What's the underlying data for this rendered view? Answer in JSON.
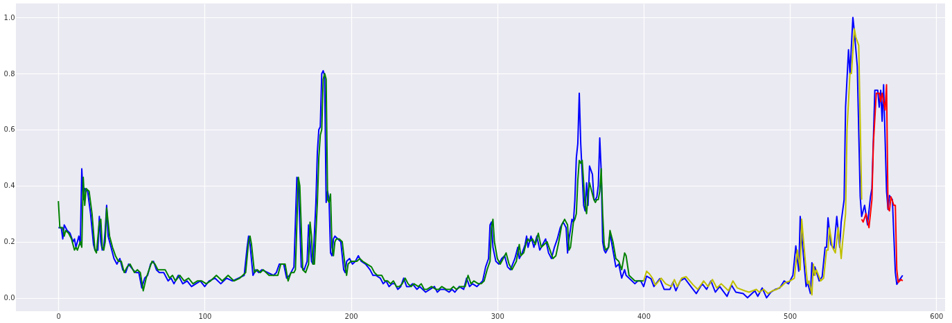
{
  "chart_data": {
    "type": "line",
    "xlim": [
      -29,
      606
    ],
    "ylim": [
      -0.048,
      1.05
    ],
    "xticks": [
      0,
      100,
      200,
      300,
      400,
      500,
      600
    ],
    "yticks": [
      {
        "value": 0,
        "label": "0.0"
      },
      {
        "value": 0.2,
        "label": "0.2"
      },
      {
        "value": 0.4,
        "label": "0.4"
      },
      {
        "value": 0.6,
        "label": "0.6"
      },
      {
        "value": 0.8,
        "label": "0.8"
      },
      {
        "value": 1.0,
        "label": "1.0"
      }
    ],
    "grid": true,
    "line_style": "solid",
    "marker": "none",
    "series": [
      {
        "color": "#0000ff",
        "x": [
          0,
          2,
          3,
          4,
          6,
          8,
          10,
          11,
          12,
          14,
          15,
          16,
          17,
          18,
          20,
          22,
          24,
          25,
          27,
          28,
          29,
          30,
          31,
          32,
          33,
          34,
          36,
          38,
          40,
          42,
          44,
          46,
          48,
          51,
          53,
          55,
          57,
          59,
          61,
          63,
          65,
          67,
          69,
          72,
          75,
          77,
          79,
          82,
          85,
          88,
          91,
          94,
          97,
          100,
          103,
          107,
          111,
          115,
          119,
          123,
          127,
          129,
          130,
          131,
          133,
          135,
          137,
          139,
          143,
          147,
          149,
          151,
          154,
          156,
          158,
          160,
          161,
          163,
          164,
          166,
          168,
          170,
          171,
          172,
          173,
          174,
          176,
          177,
          178,
          179,
          180,
          181,
          182,
          183,
          184,
          185,
          186,
          187,
          188,
          189,
          191,
          193,
          195,
          196,
          197,
          199,
          201,
          203,
          205,
          207,
          210,
          213,
          215,
          217,
          220,
          222,
          224,
          226,
          228,
          230,
          232,
          234,
          236,
          238,
          240,
          242,
          245,
          247,
          249,
          251,
          254,
          257,
          259,
          261,
          264,
          267,
          269,
          271,
          274,
          277,
          279,
          281,
          283,
          286,
          288,
          290,
          292,
          294,
          295,
          296,
          297,
          299,
          301,
          303,
          305,
          307,
          309,
          312,
          314,
          315,
          317,
          319,
          320,
          321,
          323,
          325,
          327,
          329,
          331,
          333,
          335,
          337,
          339,
          341,
          343,
          345,
          347,
          348,
          349,
          351,
          352,
          353,
          354,
          355,
          356,
          357,
          359,
          360,
          361,
          362,
          363,
          365,
          366,
          367,
          368,
          369,
          370,
          371,
          372,
          373,
          374,
          376,
          377,
          379,
          381,
          383,
          385,
          387,
          388,
          390,
          392,
          394,
          396,
          398,
          400,
          402,
          405,
          407,
          411,
          414,
          418,
          420,
          422,
          425,
          428,
          433,
          436,
          440,
          443,
          446,
          449,
          452,
          457,
          460,
          463,
          468,
          471,
          476,
          478,
          481,
          484,
          487,
          490,
          493,
          496,
          499,
          502,
          504,
          506,
          507,
          510,
          511,
          512,
          514,
          515,
          516,
          517,
          520,
          522,
          524,
          525,
          526,
          528,
          530,
          532,
          534,
          535,
          537,
          538,
          540,
          541,
          543,
          544,
          546,
          548,
          549,
          551,
          553,
          555,
          556,
          558,
          560,
          561,
          562,
          563,
          564,
          566,
          567,
          568,
          570,
          572,
          573,
          575,
          577
        ],
        "values": [
          0.25,
          0.25,
          0.21,
          0.26,
          0.24,
          0.23,
          0.2,
          0.21,
          0.18,
          0.22,
          0.19,
          0.46,
          0.35,
          0.39,
          0.38,
          0.3,
          0.19,
          0.17,
          0.17,
          0.29,
          0.2,
          0.17,
          0.18,
          0.24,
          0.33,
          0.22,
          0.18,
          0.14,
          0.12,
          0.14,
          0.1,
          0.09,
          0.12,
          0.1,
          0.09,
          0.09,
          0.035,
          0.07,
          0.08,
          0.12,
          0.13,
          0.1,
          0.09,
          0.09,
          0.06,
          0.07,
          0.05,
          0.08,
          0.05,
          0.06,
          0.04,
          0.05,
          0.06,
          0.04,
          0.06,
          0.07,
          0.05,
          0.07,
          0.06,
          0.07,
          0.08,
          0.18,
          0.22,
          0.19,
          0.08,
          0.1,
          0.09,
          0.1,
          0.09,
          0.08,
          0.09,
          0.12,
          0.12,
          0.07,
          0.08,
          0.1,
          0.11,
          0.43,
          0.42,
          0.11,
          0.1,
          0.13,
          0.26,
          0.2,
          0.13,
          0.12,
          0.34,
          0.52,
          0.6,
          0.61,
          0.8,
          0.81,
          0.79,
          0.34,
          0.38,
          0.35,
          0.16,
          0.15,
          0.21,
          0.22,
          0.21,
          0.2,
          0.1,
          0.09,
          0.13,
          0.14,
          0.12,
          0.13,
          0.15,
          0.13,
          0.12,
          0.1,
          0.08,
          0.08,
          0.07,
          0.05,
          0.06,
          0.04,
          0.05,
          0.05,
          0.03,
          0.04,
          0.07,
          0.04,
          0.04,
          0.05,
          0.03,
          0.04,
          0.03,
          0.02,
          0.03,
          0.04,
          0.02,
          0.03,
          0.03,
          0.02,
          0.03,
          0.02,
          0.04,
          0.03,
          0.07,
          0.04,
          0.05,
          0.04,
          0.05,
          0.06,
          0.11,
          0.14,
          0.26,
          0.27,
          0.18,
          0.13,
          0.12,
          0.14,
          0.15,
          0.11,
          0.1,
          0.14,
          0.18,
          0.14,
          0.16,
          0.19,
          0.22,
          0.18,
          0.22,
          0.18,
          0.22,
          0.17,
          0.19,
          0.21,
          0.16,
          0.14,
          0.18,
          0.21,
          0.25,
          0.27,
          0.25,
          0.16,
          0.21,
          0.28,
          0.27,
          0.35,
          0.5,
          0.55,
          0.73,
          0.55,
          0.33,
          0.31,
          0.41,
          0.33,
          0.47,
          0.44,
          0.35,
          0.35,
          0.36,
          0.4,
          0.57,
          0.45,
          0.2,
          0.17,
          0.16,
          0.18,
          0.23,
          0.17,
          0.11,
          0.12,
          0.07,
          0.1,
          0.08,
          0.07,
          0.06,
          0.05,
          0.06,
          0.06,
          0.04,
          0.077,
          0.068,
          0.04,
          0.068,
          0.03,
          0.03,
          0.055,
          0.025,
          0.06,
          0.07,
          0.035,
          0.015,
          0.05,
          0.03,
          0.06,
          0.02,
          0.04,
          0.005,
          0.045,
          0.02,
          0.015,
          0.0,
          0.025,
          0.005,
          0.035,
          0.0,
          0.02,
          0.03,
          0.035,
          0.06,
          0.05,
          0.08,
          0.185,
          0.095,
          0.29,
          0.1,
          0.04,
          0.055,
          0.015,
          0.125,
          0.08,
          0.11,
          0.06,
          0.075,
          0.18,
          0.18,
          0.285,
          0.19,
          0.175,
          0.29,
          0.18,
          0.27,
          0.35,
          0.68,
          0.885,
          0.8,
          1.0,
          0.95,
          0.825,
          0.36,
          0.29,
          0.33,
          0.26,
          0.36,
          0.39,
          0.74,
          0.74,
          0.68,
          0.74,
          0.63,
          0.76,
          0.38,
          0.315,
          0.365,
          0.35,
          0.09,
          0.048,
          0.065,
          0.08
        ]
      },
      {
        "color": "#008000",
        "x": [
          0,
          1,
          3,
          4,
          5,
          7,
          9,
          11,
          12,
          13,
          15,
          16,
          17,
          18,
          19,
          21,
          23,
          25,
          26,
          28,
          29,
          30,
          31,
          32,
          33,
          35,
          37,
          39,
          41,
          43,
          45,
          47,
          49,
          52,
          54,
          56,
          58,
          60,
          62,
          64,
          66,
          68,
          70,
          73,
          76,
          78,
          80,
          83,
          86,
          89,
          92,
          95,
          98,
          101,
          104,
          108,
          112,
          116,
          120,
          124,
          128,
          130,
          131,
          132,
          134,
          136,
          138,
          140,
          144,
          148,
          150,
          152,
          155,
          157,
          159,
          161,
          162,
          164,
          165,
          167,
          169,
          171,
          172,
          173,
          174,
          175,
          177,
          178,
          179,
          180,
          181,
          182,
          183,
          184,
          185,
          186,
          187,
          188,
          189,
          190,
          192,
          194,
          196,
          197,
          198,
          200,
          202,
          204,
          206,
          208,
          211,
          214,
          216,
          218,
          221,
          223,
          225,
          227,
          229,
          231,
          233,
          235,
          237,
          239,
          241,
          243,
          246,
          248,
          250,
          252,
          255,
          258,
          260,
          262,
          265,
          268,
          270,
          272,
          275,
          278,
          280,
          282,
          284,
          287,
          289,
          291,
          293,
          295,
          296,
          297,
          298,
          300,
          302,
          304,
          306,
          308,
          310,
          313,
          315,
          316,
          318,
          320,
          321,
          322,
          324,
          326,
          328,
          330,
          332,
          334,
          336,
          338,
          340,
          342,
          344,
          346,
          348,
          349,
          350,
          352,
          353,
          354,
          355,
          356,
          357,
          358,
          360,
          361,
          362,
          363,
          364,
          366,
          367,
          368,
          369,
          370,
          371,
          372,
          373,
          374,
          376,
          377,
          379,
          381,
          383,
          385,
          387,
          388,
          390,
          392,
          394,
          396,
          398,
          400
        ],
        "values": [
          0.345,
          0.25,
          0.25,
          0.22,
          0.24,
          0.23,
          0.21,
          0.17,
          0.18,
          0.17,
          0.2,
          0.18,
          0.43,
          0.33,
          0.39,
          0.38,
          0.3,
          0.17,
          0.16,
          0.27,
          0.28,
          0.18,
          0.17,
          0.2,
          0.32,
          0.22,
          0.18,
          0.15,
          0.13,
          0.13,
          0.09,
          0.11,
          0.12,
          0.09,
          0.1,
          0.09,
          0.025,
          0.07,
          0.1,
          0.13,
          0.12,
          0.1,
          0.1,
          0.1,
          0.07,
          0.08,
          0.06,
          0.08,
          0.06,
          0.07,
          0.05,
          0.06,
          0.06,
          0.05,
          0.06,
          0.08,
          0.06,
          0.08,
          0.06,
          0.07,
          0.09,
          0.2,
          0.22,
          0.19,
          0.09,
          0.1,
          0.09,
          0.1,
          0.08,
          0.08,
          0.08,
          0.12,
          0.12,
          0.06,
          0.09,
          0.09,
          0.1,
          0.43,
          0.4,
          0.1,
          0.09,
          0.12,
          0.27,
          0.22,
          0.12,
          0.12,
          0.34,
          0.5,
          0.58,
          0.6,
          0.78,
          0.8,
          0.78,
          0.35,
          0.34,
          0.37,
          0.18,
          0.15,
          0.2,
          0.21,
          0.21,
          0.2,
          0.11,
          0.08,
          0.12,
          0.13,
          0.13,
          0.13,
          0.14,
          0.13,
          0.12,
          0.11,
          0.09,
          0.08,
          0.08,
          0.06,
          0.06,
          0.05,
          0.06,
          0.04,
          0.04,
          0.05,
          0.07,
          0.05,
          0.04,
          0.05,
          0.04,
          0.05,
          0.03,
          0.03,
          0.04,
          0.03,
          0.03,
          0.04,
          0.03,
          0.03,
          0.04,
          0.03,
          0.04,
          0.04,
          0.08,
          0.05,
          0.06,
          0.05,
          0.05,
          0.06,
          0.1,
          0.13,
          0.25,
          0.28,
          0.2,
          0.14,
          0.12,
          0.14,
          0.16,
          0.12,
          0.1,
          0.13,
          0.19,
          0.15,
          0.16,
          0.2,
          0.21,
          0.2,
          0.21,
          0.19,
          0.23,
          0.18,
          0.19,
          0.2,
          0.17,
          0.14,
          0.15,
          0.2,
          0.26,
          0.28,
          0.26,
          0.17,
          0.18,
          0.27,
          0.28,
          0.3,
          0.42,
          0.49,
          0.48,
          0.49,
          0.33,
          0.3,
          0.37,
          0.41,
          0.39,
          0.35,
          0.34,
          0.35,
          0.35,
          0.38,
          0.46,
          0.3,
          0.19,
          0.17,
          0.18,
          0.24,
          0.2,
          0.14,
          0.13,
          0.1,
          0.16,
          0.15,
          0.08,
          0.07,
          0.06,
          0.06,
          0.06,
          0.06
        ]
      },
      {
        "color": "#bfbf00",
        "x": [
          400,
          402,
          404,
          406,
          408,
          412,
          415,
          419,
          421,
          423,
          426,
          429,
          434,
          437,
          441,
          444,
          447,
          450,
          453,
          458,
          461,
          464,
          469,
          472,
          477,
          479,
          482,
          485,
          488,
          491,
          494,
          497,
          500,
          503,
          505,
          507,
          508,
          511,
          512,
          513,
          515,
          516,
          517,
          518,
          521,
          523,
          525,
          526,
          527,
          529,
          531,
          533,
          535,
          536,
          538,
          539,
          541,
          542,
          544,
          545,
          547,
          549
        ],
        "values": [
          0.06,
          0.095,
          0.085,
          0.07,
          0.045,
          0.07,
          0.05,
          0.04,
          0.065,
          0.04,
          0.07,
          0.075,
          0.045,
          0.03,
          0.06,
          0.04,
          0.065,
          0.035,
          0.05,
          0.025,
          0.06,
          0.035,
          0.025,
          0.02,
          0.03,
          0.02,
          0.03,
          0.015,
          0.025,
          0.03,
          0.04,
          0.055,
          0.06,
          0.07,
          0.17,
          0.1,
          0.28,
          0.1,
          0.05,
          0.06,
          0.01,
          0.12,
          0.08,
          0.1,
          0.06,
          0.07,
          0.17,
          0.17,
          0.25,
          0.18,
          0.16,
          0.25,
          0.14,
          0.2,
          0.3,
          0.6,
          0.8,
          0.8,
          0.96,
          0.93,
          0.9,
          0.35
        ]
      },
      {
        "color": "#ff0000",
        "x": [
          549,
          550,
          552,
          554,
          556,
          557,
          559,
          561,
          562,
          563,
          565,
          566,
          567,
          568,
          569,
          571,
          572,
          573,
          574,
          576,
          577
        ],
        "values": [
          0.28,
          0.27,
          0.3,
          0.25,
          0.35,
          0.55,
          0.73,
          0.73,
          0.7,
          0.73,
          0.67,
          0.76,
          0.32,
          0.31,
          0.36,
          0.33,
          0.33,
          0.1,
          0.055,
          0.065,
          0.06
        ]
      }
    ]
  }
}
